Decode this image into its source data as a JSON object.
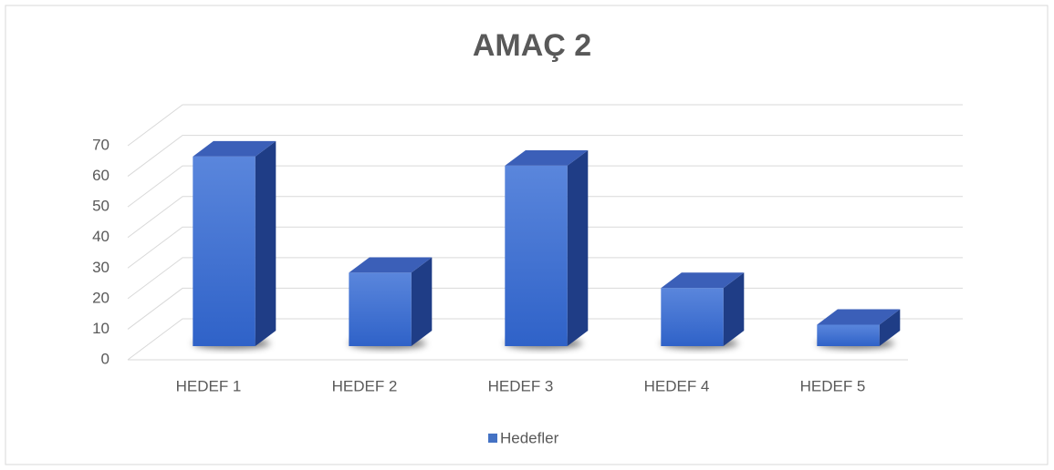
{
  "chart_data": {
    "type": "bar3d",
    "title": "AMAÇ 2",
    "categories": [
      "HEDEF 1",
      "HEDEF 2",
      "HEDEF 3",
      "HEDEF 4",
      "HEDEF 5"
    ],
    "series": [
      {
        "name": "Hedefler",
        "color": "#4472c4",
        "values": [
          62,
          24,
          59,
          19,
          7
        ]
      }
    ],
    "ylim": [
      0,
      70
    ],
    "yticks": [
      0,
      10,
      20,
      30,
      40,
      50,
      60,
      70
    ],
    "grid": true,
    "legend": "bottom"
  }
}
